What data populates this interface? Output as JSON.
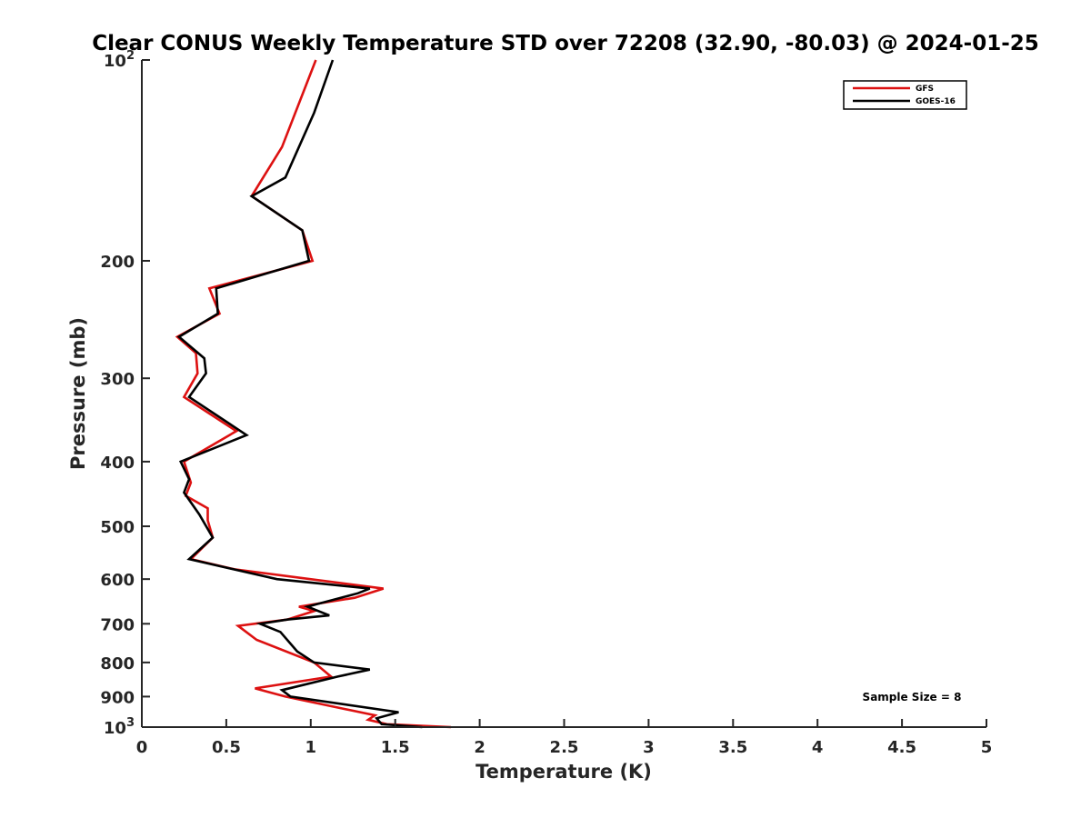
{
  "chart_data": {
    "type": "line",
    "title": "Clear CONUS Weekly Temperature STD over 72208 (32.90, -80.03) @ 2024-01-25",
    "xlabel": "Temperature (K)",
    "ylabel": "Pressure (mb)",
    "xlim": [
      0,
      5
    ],
    "ylim": [
      100,
      1000
    ],
    "y_scale": "log",
    "y_reversed": true,
    "grid": false,
    "legend_position": "top-right",
    "x_ticks": [
      "0",
      "0.5",
      "1",
      "1.5",
      "2",
      "2.5",
      "3",
      "3.5",
      "4",
      "4.5",
      "5"
    ],
    "y_ticks": [
      {
        "value": 100,
        "base": "10",
        "exp": "2"
      },
      {
        "value": 200,
        "base": "200",
        "exp": ""
      },
      {
        "value": 300,
        "base": "300",
        "exp": ""
      },
      {
        "value": 400,
        "base": "400",
        "exp": ""
      },
      {
        "value": 500,
        "base": "500",
        "exp": ""
      },
      {
        "value": 600,
        "base": "600",
        "exp": ""
      },
      {
        "value": 700,
        "base": "700",
        "exp": ""
      },
      {
        "value": 800,
        "base": "800",
        "exp": ""
      },
      {
        "value": 900,
        "base": "900",
        "exp": ""
      },
      {
        "value": 1000,
        "base": "10",
        "exp": "3"
      }
    ],
    "annotation": "Sample Size = 8",
    "series": [
      {
        "name": "GFS",
        "color": "#dd1111",
        "points": [
          [
            1.03,
            100
          ],
          [
            0.83,
            135
          ],
          [
            0.65,
            160
          ],
          [
            0.95,
            180
          ],
          [
            1.01,
            200
          ],
          [
            0.4,
            220
          ],
          [
            0.46,
            240
          ],
          [
            0.21,
            260
          ],
          [
            0.32,
            275
          ],
          [
            0.33,
            295
          ],
          [
            0.25,
            320
          ],
          [
            0.56,
            360
          ],
          [
            0.25,
            400
          ],
          [
            0.29,
            430
          ],
          [
            0.26,
            450
          ],
          [
            0.39,
            470
          ],
          [
            0.39,
            490
          ],
          [
            0.42,
            520
          ],
          [
            0.29,
            560
          ],
          [
            0.55,
            580
          ],
          [
            1.43,
            620
          ],
          [
            1.26,
            640
          ],
          [
            0.93,
            660
          ],
          [
            1.02,
            670
          ],
          [
            0.86,
            690
          ],
          [
            0.57,
            705
          ],
          [
            0.68,
            740
          ],
          [
            1.02,
            800
          ],
          [
            1.12,
            840
          ],
          [
            0.67,
            875
          ],
          [
            0.85,
            900
          ],
          [
            1.38,
            960
          ],
          [
            1.34,
            975
          ],
          [
            1.45,
            990
          ],
          [
            1.83,
            1000
          ]
        ]
      },
      {
        "name": "GOES-16",
        "color": "#000000",
        "points": [
          [
            1.13,
            100
          ],
          [
            1.02,
            120
          ],
          [
            0.85,
            150
          ],
          [
            0.65,
            160
          ],
          [
            0.95,
            180
          ],
          [
            0.99,
            200
          ],
          [
            0.44,
            220
          ],
          [
            0.45,
            240
          ],
          [
            0.22,
            260
          ],
          [
            0.37,
            280
          ],
          [
            0.38,
            295
          ],
          [
            0.28,
            320
          ],
          [
            0.62,
            365
          ],
          [
            0.23,
            400
          ],
          [
            0.28,
            425
          ],
          [
            0.25,
            445
          ],
          [
            0.34,
            480
          ],
          [
            0.42,
            520
          ],
          [
            0.28,
            560
          ],
          [
            0.8,
            600
          ],
          [
            1.35,
            620
          ],
          [
            1.28,
            630
          ],
          [
            0.98,
            660
          ],
          [
            1.11,
            680
          ],
          [
            0.86,
            690
          ],
          [
            0.7,
            700
          ],
          [
            0.82,
            720
          ],
          [
            0.92,
            770
          ],
          [
            1.02,
            800
          ],
          [
            1.35,
            820
          ],
          [
            1.16,
            840
          ],
          [
            0.83,
            880
          ],
          [
            0.88,
            900
          ],
          [
            1.52,
            950
          ],
          [
            1.39,
            970
          ],
          [
            1.42,
            990
          ],
          [
            1.66,
            1000
          ]
        ]
      }
    ]
  }
}
